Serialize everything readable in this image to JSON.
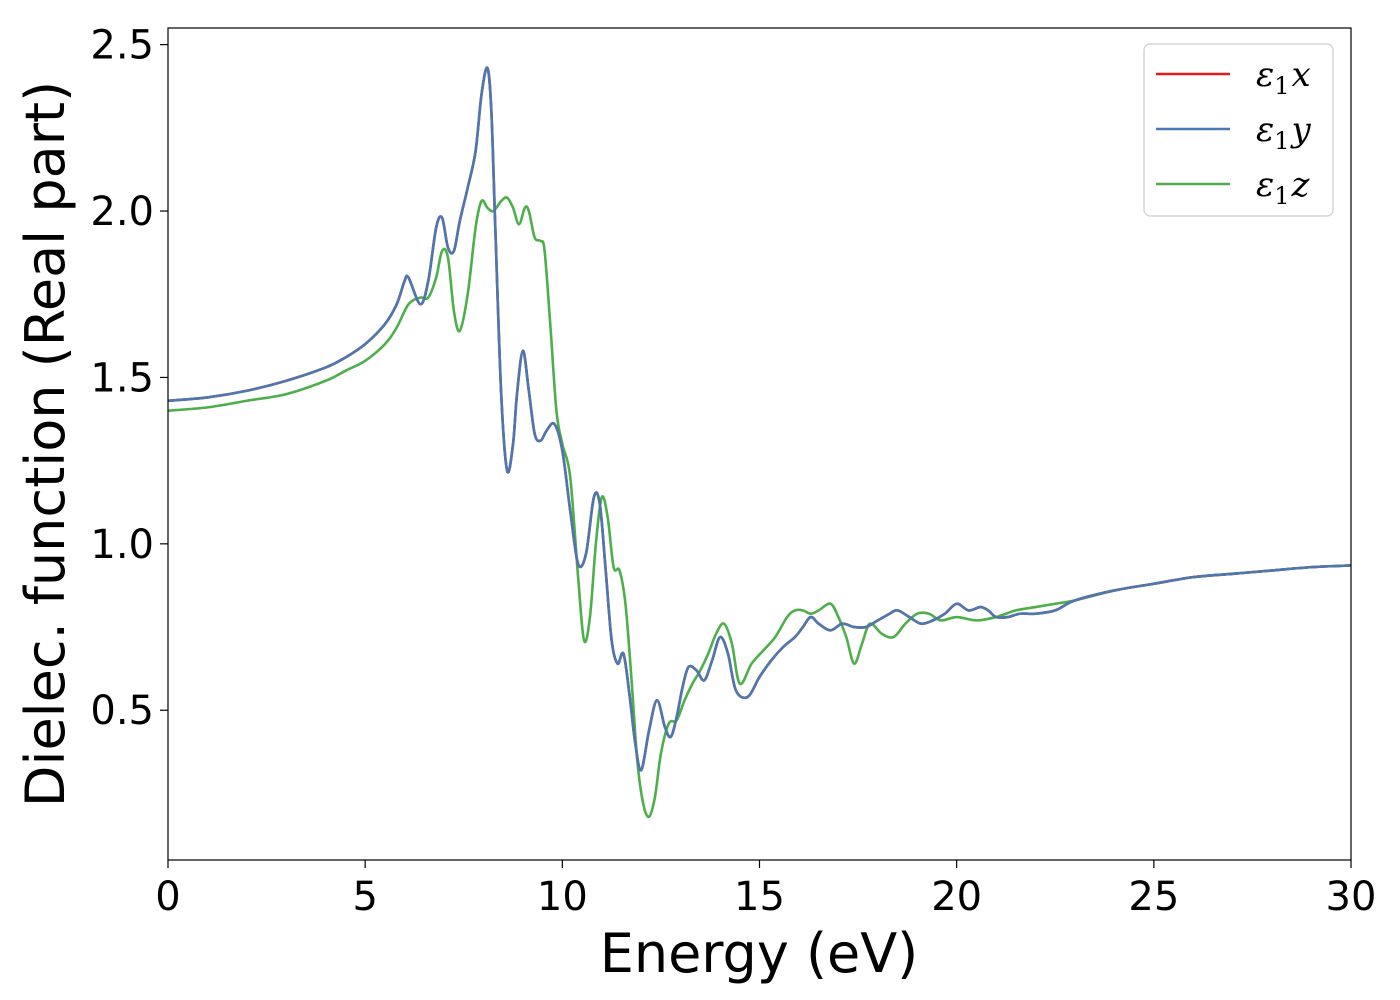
{
  "chart_data": {
    "type": "line",
    "title": "",
    "xlabel": "Energy (eV)",
    "ylabel": "Dielec. function (Real part)",
    "xlim": [
      0,
      30
    ],
    "ylim": [
      0.05,
      2.55
    ],
    "xticks": [
      0,
      5,
      10,
      15,
      20,
      25,
      30
    ],
    "xtick_labels": [
      "0",
      "5",
      "10",
      "15",
      "20",
      "25",
      "30"
    ],
    "yticks": [
      0.5,
      1.0,
      1.5,
      2.0,
      2.5
    ],
    "ytick_labels": [
      "0.5",
      "1.0",
      "1.5",
      "2.0",
      "2.5"
    ],
    "grid": false,
    "legend_position": "top-right",
    "series": [
      {
        "name": "ε1x",
        "legend": {
          "base": "ε",
          "sub": "1",
          "var": "x"
        },
        "color": "#e41a1c",
        "x": [
          0,
          1,
          2,
          3,
          4,
          4.5,
          5,
          5.5,
          5.8,
          6.0,
          6.1,
          6.4,
          6.6,
          6.8,
          6.95,
          7.1,
          7.25,
          7.4,
          7.6,
          7.8,
          7.95,
          8.1,
          8.2,
          8.3,
          8.45,
          8.6,
          8.75,
          8.85,
          9.0,
          9.15,
          9.3,
          9.45,
          9.6,
          9.8,
          10.0,
          10.2,
          10.4,
          10.6,
          10.8,
          10.95,
          11.1,
          11.25,
          11.4,
          11.55,
          11.7,
          11.85,
          12.0,
          12.2,
          12.4,
          12.6,
          12.75,
          12.9,
          13.05,
          13.2,
          13.4,
          13.6,
          13.8,
          14.0,
          14.2,
          14.4,
          14.7,
          15.0,
          15.3,
          15.6,
          15.9,
          16.1,
          16.3,
          16.5,
          16.8,
          17.1,
          17.4,
          17.7,
          18.0,
          18.3,
          18.5,
          18.8,
          19.1,
          19.4,
          19.7,
          20.0,
          20.3,
          20.6,
          20.8,
          21.0,
          21.3,
          21.6,
          22.0,
          22.5,
          23.0,
          24.0,
          25.0,
          26.0,
          27.0,
          28.0,
          29.0,
          30.0
        ],
        "y": [
          1.43,
          1.44,
          1.46,
          1.49,
          1.53,
          1.56,
          1.6,
          1.66,
          1.72,
          1.79,
          1.8,
          1.72,
          1.79,
          1.95,
          1.98,
          1.89,
          1.88,
          1.97,
          2.07,
          2.18,
          2.35,
          2.43,
          2.3,
          1.95,
          1.45,
          1.22,
          1.3,
          1.45,
          1.58,
          1.46,
          1.33,
          1.31,
          1.34,
          1.36,
          1.28,
          1.1,
          0.94,
          0.97,
          1.14,
          1.12,
          0.92,
          0.71,
          0.64,
          0.67,
          0.55,
          0.4,
          0.32,
          0.44,
          0.53,
          0.45,
          0.42,
          0.48,
          0.57,
          0.63,
          0.62,
          0.59,
          0.65,
          0.72,
          0.67,
          0.56,
          0.54,
          0.6,
          0.65,
          0.69,
          0.72,
          0.75,
          0.78,
          0.76,
          0.74,
          0.76,
          0.75,
          0.75,
          0.77,
          0.79,
          0.8,
          0.78,
          0.76,
          0.77,
          0.79,
          0.82,
          0.8,
          0.81,
          0.8,
          0.78,
          0.78,
          0.79,
          0.79,
          0.8,
          0.83,
          0.86,
          0.88,
          0.9,
          0.91,
          0.92,
          0.93,
          0.935
        ]
      },
      {
        "name": "ε1y",
        "legend": {
          "base": "ε",
          "sub": "1",
          "var": "y"
        },
        "color": "#4a78b0",
        "x": [
          0,
          1,
          2,
          3,
          4,
          4.5,
          5,
          5.5,
          5.8,
          6.0,
          6.1,
          6.4,
          6.6,
          6.8,
          6.95,
          7.1,
          7.25,
          7.4,
          7.6,
          7.8,
          7.95,
          8.1,
          8.2,
          8.3,
          8.45,
          8.6,
          8.75,
          8.85,
          9.0,
          9.15,
          9.3,
          9.45,
          9.6,
          9.8,
          10.0,
          10.2,
          10.4,
          10.6,
          10.8,
          10.95,
          11.1,
          11.25,
          11.4,
          11.55,
          11.7,
          11.85,
          12.0,
          12.2,
          12.4,
          12.6,
          12.75,
          12.9,
          13.05,
          13.2,
          13.4,
          13.6,
          13.8,
          14.0,
          14.2,
          14.4,
          14.7,
          15.0,
          15.3,
          15.6,
          15.9,
          16.1,
          16.3,
          16.5,
          16.8,
          17.1,
          17.4,
          17.7,
          18.0,
          18.3,
          18.5,
          18.8,
          19.1,
          19.4,
          19.7,
          20.0,
          20.3,
          20.6,
          20.8,
          21.0,
          21.3,
          21.6,
          22.0,
          22.5,
          23.0,
          24.0,
          25.0,
          26.0,
          27.0,
          28.0,
          29.0,
          30.0
        ],
        "y": [
          1.43,
          1.44,
          1.46,
          1.49,
          1.53,
          1.56,
          1.6,
          1.66,
          1.72,
          1.79,
          1.8,
          1.72,
          1.79,
          1.95,
          1.98,
          1.89,
          1.88,
          1.97,
          2.07,
          2.18,
          2.35,
          2.43,
          2.3,
          1.95,
          1.45,
          1.22,
          1.3,
          1.45,
          1.58,
          1.46,
          1.33,
          1.31,
          1.34,
          1.36,
          1.28,
          1.1,
          0.94,
          0.97,
          1.14,
          1.12,
          0.92,
          0.71,
          0.64,
          0.67,
          0.55,
          0.4,
          0.32,
          0.44,
          0.53,
          0.45,
          0.42,
          0.48,
          0.57,
          0.63,
          0.62,
          0.59,
          0.65,
          0.72,
          0.67,
          0.56,
          0.54,
          0.6,
          0.65,
          0.69,
          0.72,
          0.75,
          0.78,
          0.76,
          0.74,
          0.76,
          0.75,
          0.75,
          0.77,
          0.79,
          0.8,
          0.78,
          0.76,
          0.77,
          0.79,
          0.82,
          0.8,
          0.81,
          0.8,
          0.78,
          0.78,
          0.79,
          0.79,
          0.8,
          0.83,
          0.86,
          0.88,
          0.9,
          0.91,
          0.92,
          0.93,
          0.935
        ]
      },
      {
        "name": "ε1z",
        "legend": {
          "base": "ε",
          "sub": "1",
          "var": "z"
        },
        "color": "#4daf4a",
        "x": [
          0,
          1,
          2,
          3,
          4,
          4.5,
          5,
          5.5,
          5.8,
          6.1,
          6.4,
          6.6,
          6.8,
          6.95,
          7.1,
          7.25,
          7.4,
          7.6,
          7.8,
          7.95,
          8.1,
          8.25,
          8.45,
          8.6,
          8.75,
          8.9,
          9.05,
          9.15,
          9.3,
          9.45,
          9.55,
          9.7,
          9.85,
          10.0,
          10.2,
          10.4,
          10.55,
          10.7,
          10.85,
          11.0,
          11.15,
          11.3,
          11.45,
          11.6,
          11.75,
          11.9,
          12.05,
          12.2,
          12.35,
          12.5,
          12.7,
          12.9,
          13.1,
          13.3,
          13.5,
          13.7,
          13.9,
          14.1,
          14.3,
          14.5,
          14.8,
          15.1,
          15.4,
          15.7,
          15.9,
          16.1,
          16.3,
          16.5,
          16.8,
          17.0,
          17.2,
          17.4,
          17.6,
          17.8,
          18.1,
          18.4,
          18.7,
          19.0,
          19.3,
          19.6,
          20.0,
          20.5,
          21.0,
          21.5,
          22.0,
          22.5,
          23.0,
          24.0,
          25.0,
          26.0,
          27.0,
          28.0,
          29.0,
          30.0
        ],
        "y": [
          1.4,
          1.41,
          1.43,
          1.45,
          1.49,
          1.52,
          1.55,
          1.6,
          1.65,
          1.72,
          1.74,
          1.74,
          1.8,
          1.88,
          1.86,
          1.7,
          1.64,
          1.75,
          1.95,
          2.03,
          2.01,
          2.0,
          2.03,
          2.04,
          2.01,
          1.96,
          2.01,
          2.0,
          1.92,
          1.91,
          1.88,
          1.65,
          1.4,
          1.3,
          1.2,
          0.9,
          0.71,
          0.78,
          1.0,
          1.14,
          1.08,
          0.93,
          0.92,
          0.82,
          0.6,
          0.35,
          0.22,
          0.18,
          0.24,
          0.37,
          0.46,
          0.47,
          0.53,
          0.58,
          0.62,
          0.67,
          0.73,
          0.76,
          0.7,
          0.58,
          0.64,
          0.68,
          0.72,
          0.78,
          0.8,
          0.8,
          0.79,
          0.8,
          0.82,
          0.78,
          0.72,
          0.64,
          0.7,
          0.76,
          0.73,
          0.72,
          0.76,
          0.79,
          0.79,
          0.77,
          0.78,
          0.77,
          0.78,
          0.8,
          0.81,
          0.82,
          0.83,
          0.86,
          0.88,
          0.9,
          0.91,
          0.92,
          0.93,
          0.935
        ]
      }
    ]
  }
}
